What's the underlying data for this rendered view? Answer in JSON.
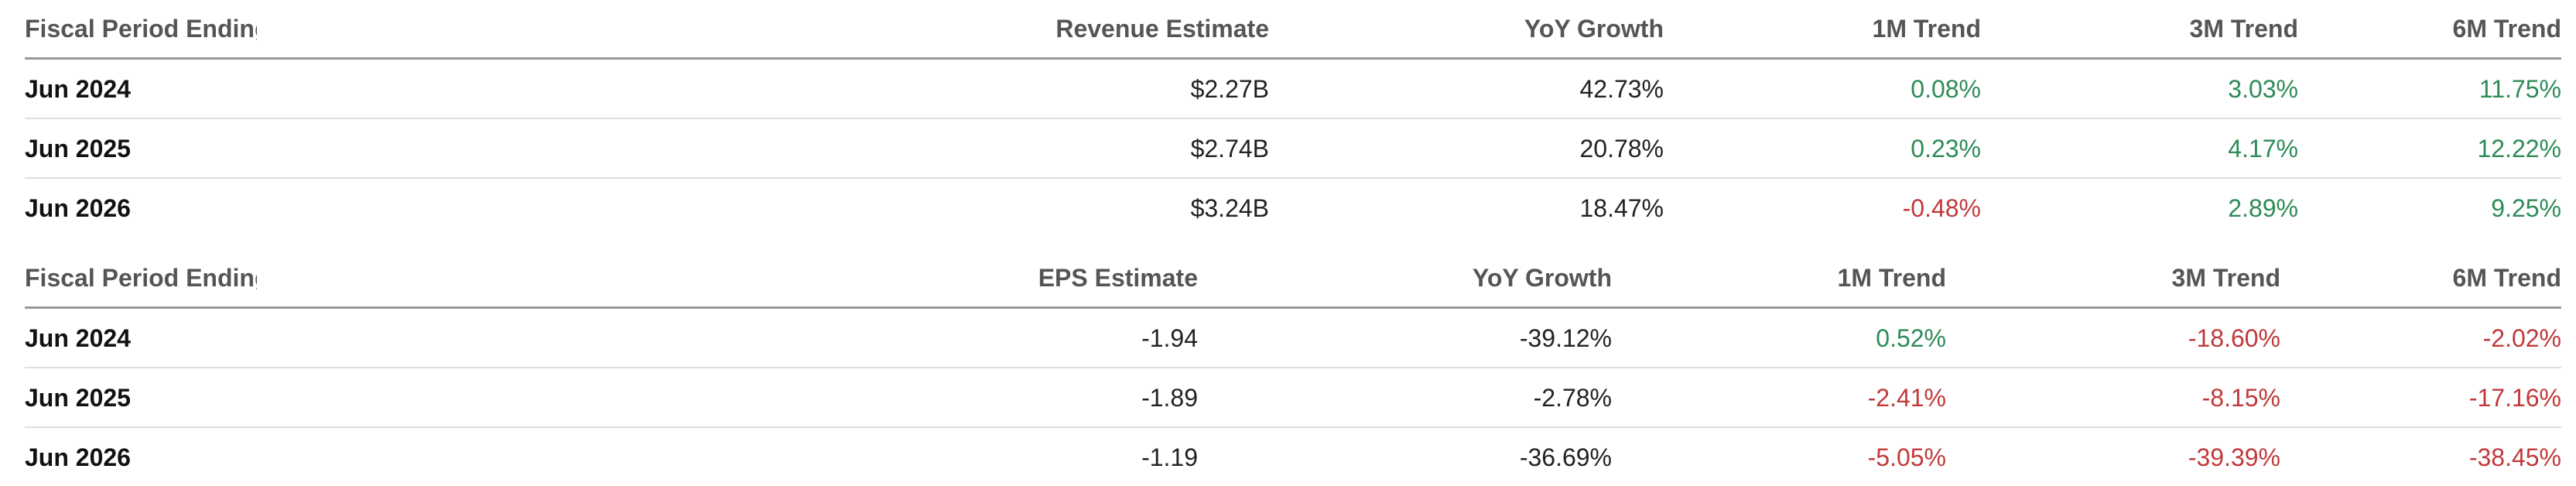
{
  "revenue": {
    "headers": [
      "Fiscal Period Ending",
      "Revenue Estimate",
      "YoY Growth",
      "1M Trend",
      "3M Trend",
      "6M Trend"
    ],
    "rows": [
      {
        "period": "Jun 2024",
        "estimate": "$2.27B",
        "yoy": "42.73%",
        "m1": "0.08%",
        "m3": "3.03%",
        "m6": "11.75%"
      },
      {
        "period": "Jun 2025",
        "estimate": "$2.74B",
        "yoy": "20.78%",
        "m1": "0.23%",
        "m3": "4.17%",
        "m6": "12.22%"
      },
      {
        "period": "Jun 2026",
        "estimate": "$3.24B",
        "yoy": "18.47%",
        "m1": "-0.48%",
        "m3": "2.89%",
        "m6": "9.25%"
      }
    ]
  },
  "eps": {
    "headers": [
      "Fiscal Period Ending",
      "EPS Estimate",
      "YoY Growth",
      "1M Trend",
      "3M Trend",
      "6M Trend"
    ],
    "rows": [
      {
        "period": "Jun 2024",
        "estimate": "-1.94",
        "yoy": "-39.12%",
        "m1": "0.52%",
        "m3": "-18.60%",
        "m6": "-2.02%"
      },
      {
        "period": "Jun 2025",
        "estimate": "-1.89",
        "yoy": "-2.78%",
        "m1": "-2.41%",
        "m3": "-8.15%",
        "m6": "-17.16%"
      },
      {
        "period": "Jun 2026",
        "estimate": "-1.19",
        "yoy": "-36.69%",
        "m1": "-5.05%",
        "m3": "-39.39%",
        "m6": "-38.45%"
      }
    ]
  },
  "colors": {
    "positive": "#2e8b57",
    "negative": "#c0393b",
    "header_text": "#555555",
    "body_text": "#111111"
  }
}
